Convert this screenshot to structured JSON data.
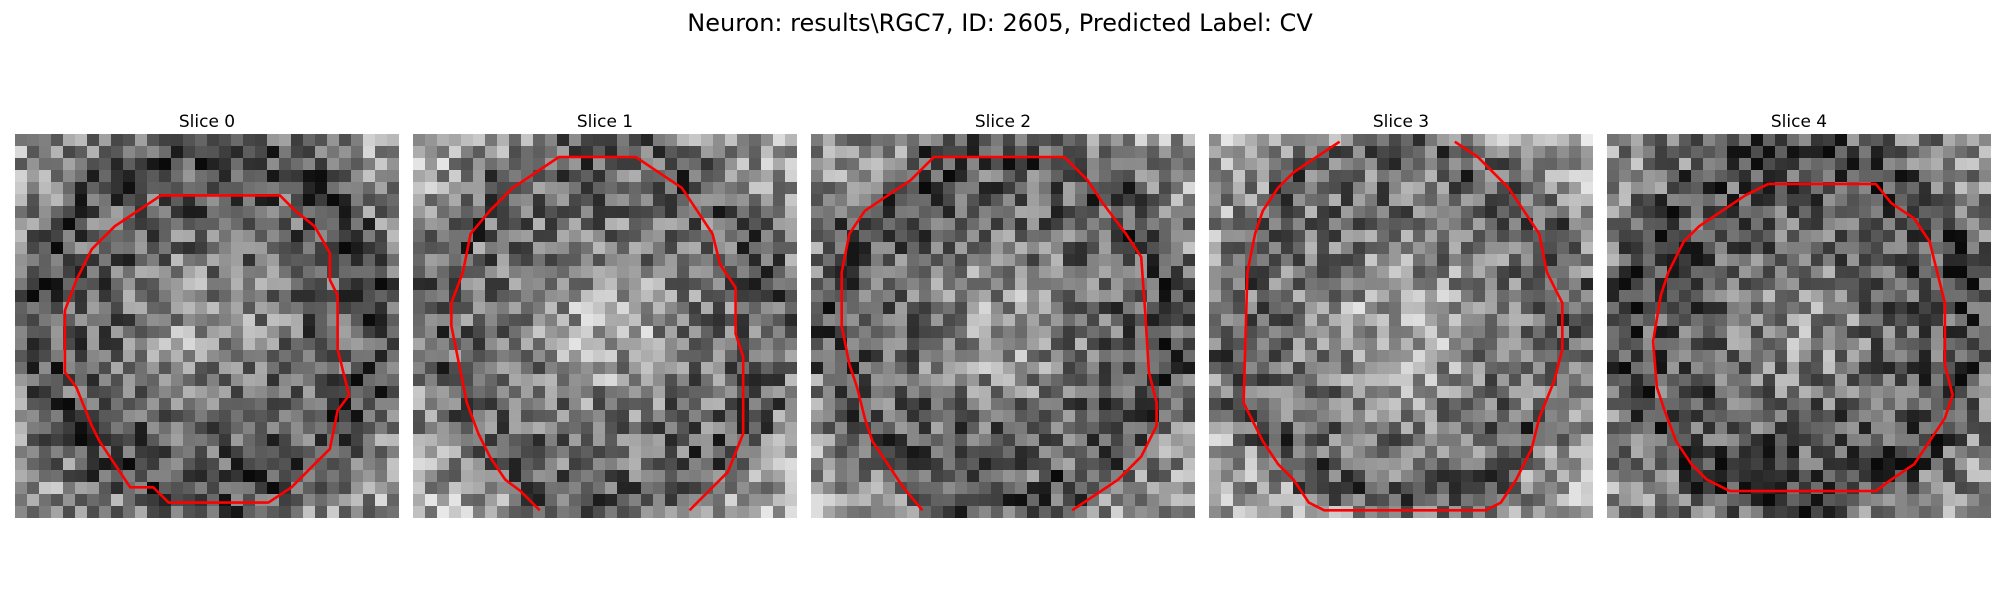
{
  "title": "Neuron: results\\RGC7, ID: 2605, Predicted Label: CV",
  "panels": [
    {
      "title": "Slice 0",
      "seed": 11,
      "bright": 0.48,
      "contour": [
        [
          0.6,
          0.16
        ],
        [
          0.69,
          0.16
        ],
        [
          0.73,
          0.2
        ],
        [
          0.78,
          0.24
        ],
        [
          0.82,
          0.31
        ],
        [
          0.82,
          0.38
        ],
        [
          0.84,
          0.42
        ],
        [
          0.84,
          0.5
        ],
        [
          0.84,
          0.56
        ],
        [
          0.86,
          0.64
        ],
        [
          0.87,
          0.68
        ],
        [
          0.84,
          0.72
        ],
        [
          0.82,
          0.82
        ],
        [
          0.78,
          0.86
        ],
        [
          0.72,
          0.92
        ],
        [
          0.66,
          0.96
        ],
        [
          0.4,
          0.96
        ],
        [
          0.36,
          0.92
        ],
        [
          0.3,
          0.92
        ],
        [
          0.26,
          0.86
        ],
        [
          0.22,
          0.8
        ],
        [
          0.2,
          0.76
        ],
        [
          0.16,
          0.66
        ],
        [
          0.13,
          0.62
        ],
        [
          0.13,
          0.46
        ],
        [
          0.16,
          0.38
        ],
        [
          0.2,
          0.3
        ],
        [
          0.26,
          0.24
        ],
        [
          0.32,
          0.2
        ],
        [
          0.38,
          0.16
        ],
        [
          0.6,
          0.16
        ]
      ]
    },
    {
      "title": "Slice 1",
      "seed": 23,
      "bright": 0.55,
      "contour": [
        [
          0.33,
          0.98
        ],
        [
          0.28,
          0.93
        ],
        [
          0.24,
          0.9
        ],
        [
          0.2,
          0.84
        ],
        [
          0.17,
          0.78
        ],
        [
          0.14,
          0.7
        ],
        [
          0.12,
          0.6
        ],
        [
          0.1,
          0.5
        ],
        [
          0.1,
          0.44
        ],
        [
          0.13,
          0.36
        ],
        [
          0.15,
          0.26
        ],
        [
          0.2,
          0.2
        ],
        [
          0.26,
          0.14
        ],
        [
          0.32,
          0.1
        ],
        [
          0.38,
          0.06
        ],
        [
          0.58,
          0.06
        ],
        [
          0.64,
          0.1
        ],
        [
          0.7,
          0.14
        ],
        [
          0.74,
          0.2
        ],
        [
          0.78,
          0.26
        ],
        [
          0.8,
          0.34
        ],
        [
          0.84,
          0.4
        ],
        [
          0.84,
          0.52
        ],
        [
          0.86,
          0.58
        ],
        [
          0.86,
          0.78
        ],
        [
          0.82,
          0.88
        ],
        [
          0.78,
          0.92
        ],
        [
          0.72,
          0.98
        ]
      ]
    },
    {
      "title": "Slice 2",
      "seed": 37,
      "bright": 0.5,
      "contour": [
        [
          0.29,
          0.98
        ],
        [
          0.24,
          0.92
        ],
        [
          0.2,
          0.86
        ],
        [
          0.16,
          0.8
        ],
        [
          0.14,
          0.74
        ],
        [
          0.12,
          0.66
        ],
        [
          0.1,
          0.6
        ],
        [
          0.08,
          0.5
        ],
        [
          0.08,
          0.36
        ],
        [
          0.1,
          0.26
        ],
        [
          0.14,
          0.2
        ],
        [
          0.2,
          0.16
        ],
        [
          0.26,
          0.12
        ],
        [
          0.32,
          0.06
        ],
        [
          0.66,
          0.06
        ],
        [
          0.72,
          0.12
        ],
        [
          0.76,
          0.18
        ],
        [
          0.82,
          0.26
        ],
        [
          0.86,
          0.32
        ],
        [
          0.87,
          0.46
        ],
        [
          0.88,
          0.62
        ],
        [
          0.9,
          0.7
        ],
        [
          0.9,
          0.76
        ],
        [
          0.86,
          0.84
        ],
        [
          0.8,
          0.9
        ],
        [
          0.74,
          0.94
        ],
        [
          0.68,
          0.98
        ]
      ]
    },
    {
      "title": "Slice 3",
      "seed": 51,
      "bright": 0.56,
      "contour": [
        [
          0.34,
          0.02
        ],
        [
          0.28,
          0.06
        ],
        [
          0.22,
          0.1
        ],
        [
          0.18,
          0.14
        ],
        [
          0.14,
          0.2
        ],
        [
          0.12,
          0.26
        ],
        [
          0.1,
          0.36
        ],
        [
          0.09,
          0.7
        ],
        [
          0.12,
          0.76
        ],
        [
          0.14,
          0.8
        ],
        [
          0.18,
          0.86
        ],
        [
          0.22,
          0.9
        ],
        [
          0.26,
          0.96
        ],
        [
          0.3,
          0.98
        ],
        [
          0.72,
          0.98
        ],
        [
          0.76,
          0.96
        ],
        [
          0.8,
          0.9
        ],
        [
          0.84,
          0.82
        ],
        [
          0.86,
          0.74
        ],
        [
          0.9,
          0.64
        ],
        [
          0.92,
          0.56
        ],
        [
          0.92,
          0.44
        ],
        [
          0.88,
          0.36
        ],
        [
          0.86,
          0.26
        ],
        [
          0.82,
          0.2
        ],
        [
          0.78,
          0.14
        ],
        [
          0.74,
          0.1
        ],
        [
          0.7,
          0.06
        ],
        [
          0.64,
          0.02
        ]
      ]
    },
    {
      "title": "Slice 4",
      "seed": 67,
      "bright": 0.46,
      "contour": [
        [
          0.42,
          0.13
        ],
        [
          0.7,
          0.13
        ],
        [
          0.74,
          0.18
        ],
        [
          0.8,
          0.22
        ],
        [
          0.84,
          0.28
        ],
        [
          0.86,
          0.36
        ],
        [
          0.88,
          0.44
        ],
        [
          0.88,
          0.6
        ],
        [
          0.9,
          0.68
        ],
        [
          0.88,
          0.74
        ],
        [
          0.84,
          0.8
        ],
        [
          0.8,
          0.86
        ],
        [
          0.74,
          0.9
        ],
        [
          0.7,
          0.93
        ],
        [
          0.32,
          0.93
        ],
        [
          0.26,
          0.9
        ],
        [
          0.22,
          0.86
        ],
        [
          0.18,
          0.8
        ],
        [
          0.15,
          0.72
        ],
        [
          0.13,
          0.66
        ],
        [
          0.12,
          0.54
        ],
        [
          0.14,
          0.42
        ],
        [
          0.16,
          0.36
        ],
        [
          0.2,
          0.28
        ],
        [
          0.24,
          0.24
        ],
        [
          0.3,
          0.2
        ],
        [
          0.36,
          0.16
        ],
        [
          0.42,
          0.13
        ]
      ]
    }
  ]
}
